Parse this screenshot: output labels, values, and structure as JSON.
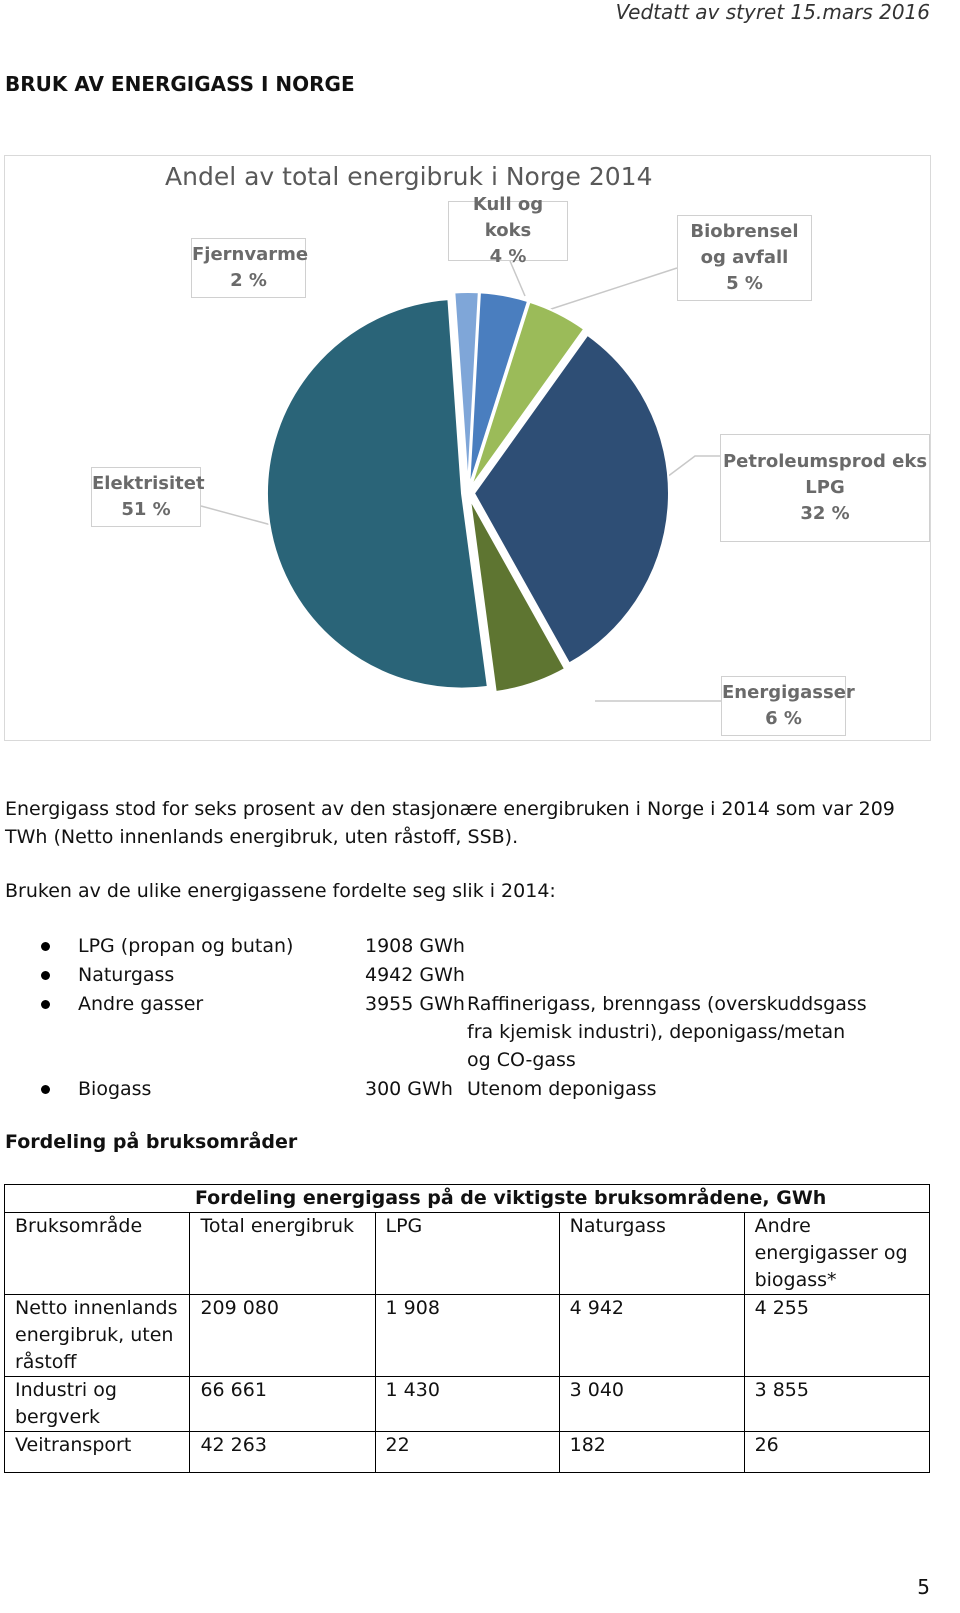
{
  "header": "Vedtatt av styret 15.mars 2016",
  "heading": "BRUK AV ENERGIGASS I NORGE",
  "chart_data": {
    "type": "pie",
    "title": "Andel av total energibruk i Norge 2014",
    "categories": [
      "Fjernvarme",
      "Kull og koks",
      "Biobrensel og avfall",
      "Petroleumsprod eks LPG",
      "Energigasser",
      "Elektrisitet"
    ],
    "values": [
      2,
      4,
      5,
      32,
      6,
      51
    ],
    "value_labels": [
      "2 %",
      "4 %",
      "5 %",
      "32 %",
      "6 %",
      "51 %"
    ],
    "colors": [
      "#7fa6d8",
      "#4a7ebf",
      "#9bbb59",
      "#2e4e75",
      "#5e7531",
      "#2a6478"
    ]
  },
  "paragraphs": [
    "Energigass stod for seks prosent av den stasjonære energibruken i Norge i 2014 som var 209 TWh (Netto innenlands energibruk, uten råstoff, SSB).",
    "Bruken av de ulike energigassene fordelte seg slik i 2014:"
  ],
  "list": [
    {
      "name": "LPG (propan og butan)",
      "amount": "1908 GWh"
    },
    {
      "name": "Naturgass",
      "amount": "4942 GWh"
    },
    {
      "name": "Andre gasser",
      "amount": "3955 GWh",
      "note": "Raffinerigass, brenngass (overskuddsgass fra kjemisk industri), deponigass/metan og CO-gass"
    },
    {
      "name": "Biogass",
      "amount": "300 GWh",
      "note": "Utenom deponigass"
    }
  ],
  "subheading": "Fordeling på bruksområder",
  "table": {
    "caption": "Fordeling energigass på de viktigste bruksområdene, GWh",
    "header": [
      "Bruksområde",
      "Total energibruk",
      "LPG",
      "Naturgass",
      "Andre energigasser og biogass*"
    ],
    "rows": [
      [
        "Netto innenlands energibruk, uten råstoff",
        "209 080",
        "1 908",
        "4 942",
        "4 255"
      ],
      [
        "Industri og bergverk",
        "66 661",
        "1 430",
        "3 040",
        "3 855"
      ],
      [
        "Veitransport",
        "42 263",
        "22",
        "182",
        "26"
      ]
    ]
  },
  "page_number": "5"
}
